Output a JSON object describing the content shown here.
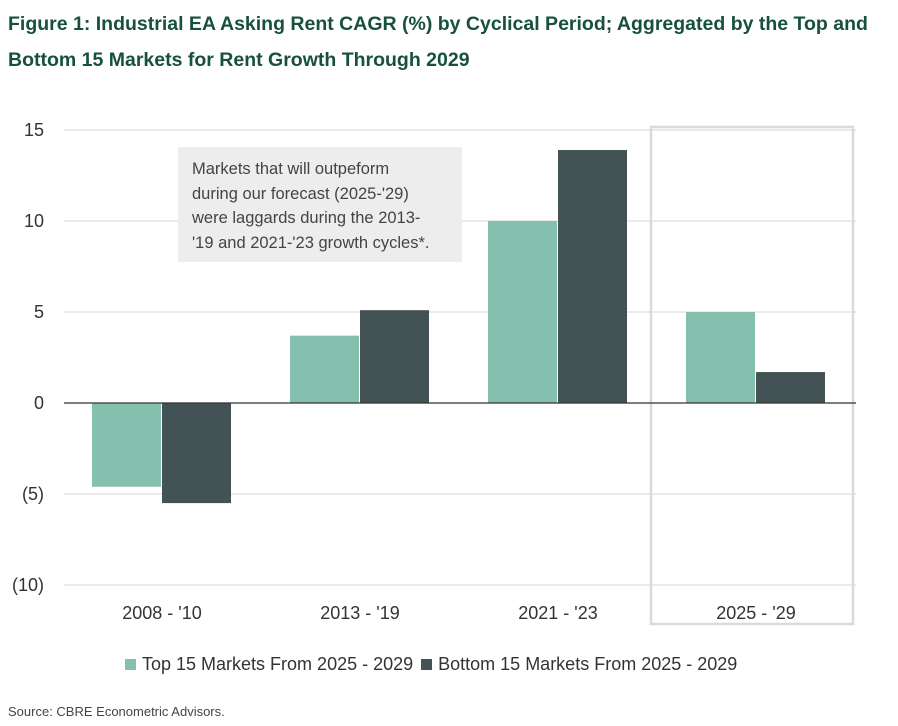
{
  "title_line1": "Figure 1: Industrial EA Asking Rent CAGR (%) by Cyclical Period; Aggregated by the Top and",
  "title_line2": "Bottom 15 Markets for Rent Growth Through 2029",
  "annotation_lines": [
    "Markets that will outpeform",
    "during our forecast (2025-'29)",
    "were laggards during the 2013-",
    "'19 and 2021-'23 growth cycles*."
  ],
  "source": "Source: CBRE Econometric Advisors.",
  "chart_data": {
    "type": "bar",
    "title": "Industrial EA Asking Rent CAGR (%) by Cyclical Period",
    "xlabel": "",
    "ylabel": "",
    "categories": [
      "2008 - '10",
      "2013 - '19",
      "2021 - '23",
      "2025 - '29"
    ],
    "series": [
      {
        "name": "Top 15 Markets From 2025 - 2029",
        "color": "#85bfae",
        "values": [
          -4.6,
          3.7,
          10.0,
          5.0
        ]
      },
      {
        "name": "Bottom 15 Markets From 2025 - 2029",
        "color": "#435254",
        "values": [
          -5.5,
          5.1,
          13.9,
          1.7
        ]
      }
    ],
    "ylim": [
      -10,
      15
    ],
    "yticks": [
      15,
      10,
      5,
      0,
      -5,
      -10
    ],
    "ytick_labels": [
      "15",
      "10",
      "5",
      "0",
      "(5)",
      "(10)"
    ],
    "grid": true,
    "highlight_category": "2025 - '29",
    "legend_position": "bottom"
  }
}
